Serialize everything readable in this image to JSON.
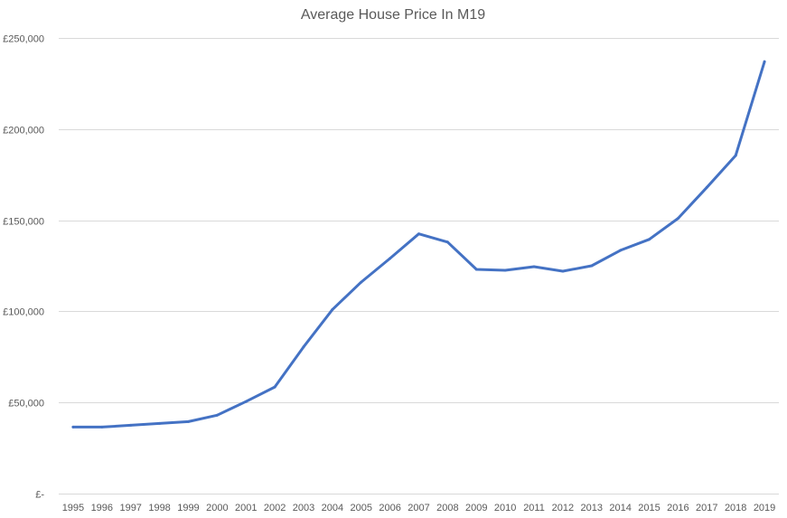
{
  "chart_data": {
    "type": "line",
    "title": "Average House Price In M19",
    "xlabel": "",
    "ylabel": "",
    "categories": [
      "1995",
      "1996",
      "1997",
      "1998",
      "1999",
      "2000",
      "2001",
      "2002",
      "2003",
      "2004",
      "2005",
      "2006",
      "2007",
      "2008",
      "2009",
      "2010",
      "2011",
      "2012",
      "2013",
      "2014",
      "2015",
      "2016",
      "2017",
      "2018",
      "2019"
    ],
    "ylim": [
      0,
      250000
    ],
    "y_ticks": [
      0,
      50000,
      100000,
      150000,
      200000,
      250000
    ],
    "y_tick_labels": [
      "£-",
      "£50,000",
      "£100,000",
      "£150,000",
      "£200,000",
      "£250,000"
    ],
    "grid": true,
    "legend": "none",
    "series": [
      {
        "color": "#4472c4",
        "values": [
          36500,
          36500,
          37500,
          38500,
          39500,
          43000,
          50500,
          58500,
          80500,
          101000,
          116000,
          129000,
          142500,
          138000,
          123000,
          122500,
          124500,
          122000,
          125000,
          133500,
          139500,
          151000,
          168000,
          185500,
          237000
        ]
      }
    ]
  }
}
